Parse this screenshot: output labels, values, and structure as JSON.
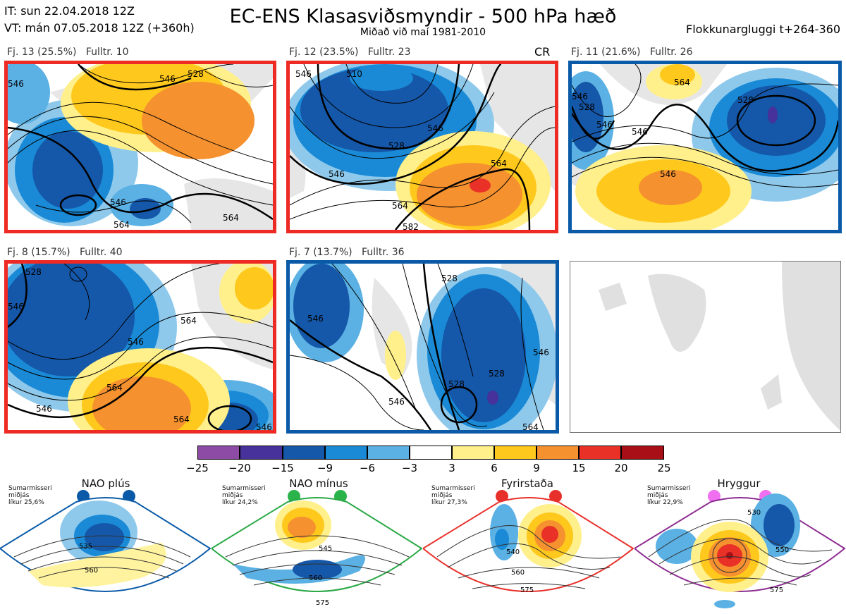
{
  "header": {
    "it": "IT: sun 22.04.2018 12Z",
    "vt": "VT: mán 07.05.2018 12Z  (+360h)",
    "title": "EC-ENS Klasasviðsmyndir - 500 hPa hæð",
    "subtitle": "Miðað við maí 1981-2010",
    "window": "Flokkunargluggi t+264-360"
  },
  "panels": [
    {
      "caption": "Fj. 13 (25.5%)   Fulltr. 10",
      "frame_color": "#ee2a24",
      "labels": [
        "546",
        "528",
        "546",
        "564",
        "564",
        "546"
      ],
      "extra": ""
    },
    {
      "caption": "Fj. 12 (23.5%)   Fulltr. 23",
      "frame_color": "#ee2a24",
      "labels": [
        "546",
        "510",
        "528",
        "546",
        "564",
        "564",
        "546",
        "582"
      ],
      "extra": "CR"
    },
    {
      "caption": "Fj. 11 (21.6%)   Fulltr. 26",
      "frame_color": "#0a5aa8",
      "labels": [
        "546",
        "528",
        "528",
        "546",
        "546",
        "564",
        "546"
      ],
      "extra": ""
    },
    {
      "caption": "Fj. 8 (15.7%)   Fulltr. 40",
      "frame_color": "#ee2a24",
      "labels": [
        "528",
        "546",
        "546",
        "564",
        "564",
        "546",
        "564",
        "546"
      ],
      "extra": ""
    },
    {
      "caption": "Fj. 7 (13.7%)   Fulltr. 36",
      "frame_color": "#0a5aa8",
      "labels": [
        "546",
        "528",
        "546",
        "528",
        "546",
        "528",
        "564"
      ],
      "extra": ""
    }
  ],
  "colorbar": {
    "ticks": [
      "−25",
      "−20",
      "−15",
      "−9",
      "−6",
      "−3",
      "3",
      "6",
      "9",
      "15",
      "20",
      "25"
    ],
    "colors": [
      "#8e4ba5",
      "#47319a",
      "#1557a8",
      "#1a8ad6",
      "#5bb1e4",
      "#ffffff",
      "#fff08c",
      "#ffc81c",
      "#f5912f",
      "#e93127",
      "#a80f16"
    ]
  },
  "regimes": [
    {
      "name": "NAO plús",
      "info": [
        "Sumarmisseri",
        "miðjás",
        "líkur 25,6%"
      ],
      "color": "#0a5aa8",
      "dot_color": "#0a5aa8",
      "contours": [
        "535",
        "560"
      ]
    },
    {
      "name": "NAO mínus",
      "info": [
        "Sumarmisseri",
        "miðjás",
        "líkur 24,2%"
      ],
      "color": "#29a845",
      "dot_color": "#29b34a",
      "contours": [
        "545",
        "560",
        "575"
      ]
    },
    {
      "name": "Fyrirstaða",
      "info": [
        "Sumarmisseri",
        "miðjás",
        "líkur 27,3%"
      ],
      "color": "#e8302a",
      "dot_color": "#e8302a",
      "contours": [
        "540",
        "560",
        "575"
      ]
    },
    {
      "name": "Hryggur",
      "info": [
        "Sumarmisseri",
        "miðjás",
        "líkur 22,9%"
      ],
      "color": "#8d2c91",
      "dot_color": "#f06ef0",
      "contours": [
        "530",
        "550",
        "575"
      ]
    }
  ]
}
